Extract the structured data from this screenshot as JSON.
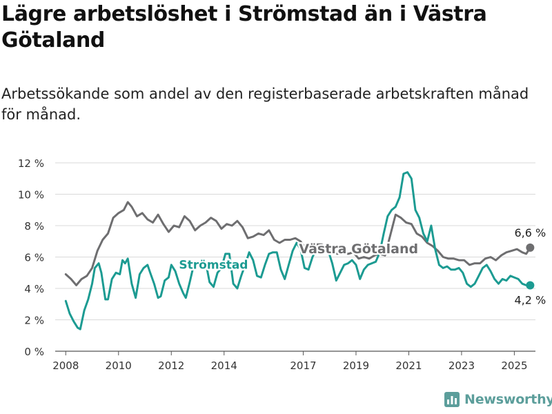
{
  "header": {
    "title": "Lägre arbetslöshet i Strömstad än i Västra Götaland",
    "subtitle": "Arbetssökande som andel av den registerbaserade arbetskraften månad för månad."
  },
  "brand": {
    "name": "Newsworthy",
    "icon": "newsworthy-logo-icon",
    "color": "#5c9e9b"
  },
  "chart_data": {
    "type": "line",
    "title": "Lägre arbetslöshet i Strömstad än i Västra Götaland",
    "subtitle": "Arbetssökande som andel av den registerbaserade arbetskraften månad för månad.",
    "xlabel": "",
    "ylabel": "",
    "x_range": [
      2007.6,
      2025.8
    ],
    "ylim": [
      0,
      12
    ],
    "y_ticks": [
      0,
      2,
      4,
      6,
      8,
      10,
      12
    ],
    "y_tick_labels": [
      "0 %",
      "2 %",
      "4 %",
      "6 %",
      "8 %",
      "10 %",
      "12 %"
    ],
    "x_ticks": [
      2008,
      2010,
      2012,
      2014,
      2017,
      2019,
      2021,
      2023,
      2025
    ],
    "x_tick_labels": [
      "2008",
      "2010",
      "2012",
      "2014",
      "2017",
      "2019",
      "2021",
      "2023",
      "2025"
    ],
    "grid": "horizontal",
    "legend": "inline labels",
    "series": [
      {
        "name": "Västra Götaland",
        "color": "#6e6e70",
        "end_label": "6,6 %",
        "points": [
          [
            2008.0,
            4.9
          ],
          [
            2008.2,
            4.6
          ],
          [
            2008.4,
            4.2
          ],
          [
            2008.6,
            4.6
          ],
          [
            2008.8,
            4.8
          ],
          [
            2009.0,
            5.3
          ],
          [
            2009.2,
            6.4
          ],
          [
            2009.4,
            7.1
          ],
          [
            2009.6,
            7.5
          ],
          [
            2009.8,
            8.5
          ],
          [
            2010.0,
            8.8
          ],
          [
            2010.2,
            9.0
          ],
          [
            2010.35,
            9.5
          ],
          [
            2010.5,
            9.2
          ],
          [
            2010.7,
            8.6
          ],
          [
            2010.9,
            8.8
          ],
          [
            2011.1,
            8.4
          ],
          [
            2011.3,
            8.2
          ],
          [
            2011.5,
            8.7
          ],
          [
            2011.7,
            8.1
          ],
          [
            2011.9,
            7.6
          ],
          [
            2012.1,
            8.0
          ],
          [
            2012.3,
            7.9
          ],
          [
            2012.5,
            8.6
          ],
          [
            2012.7,
            8.3
          ],
          [
            2012.9,
            7.7
          ],
          [
            2013.1,
            8.0
          ],
          [
            2013.3,
            8.2
          ],
          [
            2013.5,
            8.5
          ],
          [
            2013.7,
            8.3
          ],
          [
            2013.9,
            7.8
          ],
          [
            2014.1,
            8.1
          ],
          [
            2014.3,
            8.0
          ],
          [
            2014.5,
            8.3
          ],
          [
            2014.7,
            7.9
          ],
          [
            2014.9,
            7.2
          ],
          [
            2015.1,
            7.3
          ],
          [
            2015.3,
            7.5
          ],
          [
            2015.5,
            7.4
          ],
          [
            2015.7,
            7.7
          ],
          [
            2015.9,
            7.1
          ],
          [
            2016.1,
            6.9
          ],
          [
            2016.3,
            7.1
          ],
          [
            2016.5,
            7.1
          ],
          [
            2016.7,
            7.2
          ],
          [
            2016.9,
            7.0
          ],
          [
            2017.1,
            6.5
          ],
          [
            2017.3,
            6.7
          ],
          [
            2017.5,
            6.8
          ],
          [
            2017.7,
            6.8
          ],
          [
            2017.9,
            6.6
          ],
          [
            2018.1,
            6.3
          ],
          [
            2018.3,
            6.2
          ],
          [
            2018.5,
            6.3
          ],
          [
            2018.7,
            6.2
          ],
          [
            2018.9,
            6.3
          ],
          [
            2019.1,
            5.9
          ],
          [
            2019.3,
            6.0
          ],
          [
            2019.5,
            5.9
          ],
          [
            2019.7,
            6.1
          ],
          [
            2019.9,
            6.2
          ],
          [
            2020.1,
            6.1
          ],
          [
            2020.3,
            7.4
          ],
          [
            2020.5,
            8.7
          ],
          [
            2020.7,
            8.5
          ],
          [
            2020.9,
            8.2
          ],
          [
            2021.1,
            8.1
          ],
          [
            2021.3,
            7.5
          ],
          [
            2021.5,
            7.3
          ],
          [
            2021.7,
            6.9
          ],
          [
            2021.9,
            6.7
          ],
          [
            2022.1,
            6.4
          ],
          [
            2022.3,
            6.0
          ],
          [
            2022.5,
            5.9
          ],
          [
            2022.7,
            5.9
          ],
          [
            2022.9,
            5.8
          ],
          [
            2023.1,
            5.8
          ],
          [
            2023.3,
            5.5
          ],
          [
            2023.5,
            5.6
          ],
          [
            2023.7,
            5.6
          ],
          [
            2023.9,
            5.9
          ],
          [
            2024.1,
            6.0
          ],
          [
            2024.3,
            5.8
          ],
          [
            2024.5,
            6.1
          ],
          [
            2024.7,
            6.3
          ],
          [
            2024.9,
            6.4
          ],
          [
            2025.1,
            6.5
          ],
          [
            2025.3,
            6.3
          ],
          [
            2025.45,
            6.2
          ],
          [
            2025.6,
            6.6
          ]
        ]
      },
      {
        "name": "Strömstad",
        "color": "#1c9b92",
        "end_label": "4,2 %",
        "points": [
          [
            2008.0,
            3.2
          ],
          [
            2008.15,
            2.4
          ],
          [
            2008.3,
            1.9
          ],
          [
            2008.45,
            1.5
          ],
          [
            2008.55,
            1.4
          ],
          [
            2008.7,
            2.6
          ],
          [
            2008.85,
            3.3
          ],
          [
            2009.0,
            4.3
          ],
          [
            2009.1,
            5.3
          ],
          [
            2009.25,
            5.6
          ],
          [
            2009.35,
            5.0
          ],
          [
            2009.5,
            3.3
          ],
          [
            2009.6,
            3.3
          ],
          [
            2009.75,
            4.6
          ],
          [
            2009.9,
            5.0
          ],
          [
            2010.05,
            4.9
          ],
          [
            2010.15,
            5.8
          ],
          [
            2010.25,
            5.6
          ],
          [
            2010.35,
            5.9
          ],
          [
            2010.5,
            4.3
          ],
          [
            2010.65,
            3.4
          ],
          [
            2010.8,
            4.9
          ],
          [
            2010.95,
            5.3
          ],
          [
            2011.1,
            5.5
          ],
          [
            2011.2,
            5.0
          ],
          [
            2011.35,
            4.3
          ],
          [
            2011.5,
            3.4
          ],
          [
            2011.6,
            3.5
          ],
          [
            2011.75,
            4.5
          ],
          [
            2011.9,
            4.7
          ],
          [
            2012.0,
            5.5
          ],
          [
            2012.15,
            5.1
          ],
          [
            2012.3,
            4.3
          ],
          [
            2012.45,
            3.7
          ],
          [
            2012.55,
            3.4
          ],
          [
            2012.7,
            4.4
          ],
          [
            2012.85,
            5.5
          ],
          [
            2013.0,
            5.6
          ],
          [
            2013.15,
            5.5
          ],
          [
            2013.3,
            5.7
          ],
          [
            2013.45,
            4.4
          ],
          [
            2013.6,
            4.1
          ],
          [
            2013.75,
            5.0
          ],
          [
            2013.9,
            5.3
          ],
          [
            2014.05,
            6.2
          ],
          [
            2014.2,
            6.2
          ],
          [
            2014.35,
            4.3
          ],
          [
            2014.5,
            4.0
          ],
          [
            2014.65,
            4.8
          ],
          [
            2014.8,
            5.5
          ],
          [
            2014.95,
            6.3
          ],
          [
            2015.1,
            5.8
          ],
          [
            2015.25,
            4.8
          ],
          [
            2015.4,
            4.7
          ],
          [
            2015.55,
            5.5
          ],
          [
            2015.7,
            6.2
          ],
          [
            2015.85,
            6.3
          ],
          [
            2016.0,
            6.3
          ],
          [
            2016.15,
            5.2
          ],
          [
            2016.3,
            4.6
          ],
          [
            2016.45,
            5.5
          ],
          [
            2016.6,
            6.4
          ],
          [
            2016.75,
            6.9
          ],
          [
            2016.9,
            6.5
          ],
          [
            2017.05,
            5.3
          ],
          [
            2017.2,
            5.2
          ],
          [
            2017.35,
            6.0
          ],
          [
            2017.5,
            6.5
          ],
          [
            2017.65,
            6.6
          ],
          [
            2017.8,
            6.5
          ],
          [
            2017.95,
            6.4
          ],
          [
            2018.1,
            5.6
          ],
          [
            2018.25,
            4.5
          ],
          [
            2018.4,
            5.0
          ],
          [
            2018.55,
            5.5
          ],
          [
            2018.7,
            5.6
          ],
          [
            2018.85,
            5.8
          ],
          [
            2019.0,
            5.5
          ],
          [
            2019.15,
            4.6
          ],
          [
            2019.3,
            5.2
          ],
          [
            2019.45,
            5.5
          ],
          [
            2019.6,
            5.6
          ],
          [
            2019.75,
            5.7
          ],
          [
            2019.9,
            6.3
          ],
          [
            2020.05,
            7.5
          ],
          [
            2020.2,
            8.6
          ],
          [
            2020.35,
            9.0
          ],
          [
            2020.5,
            9.2
          ],
          [
            2020.65,
            9.8
          ],
          [
            2020.8,
            11.3
          ],
          [
            2020.95,
            11.4
          ],
          [
            2021.1,
            11.0
          ],
          [
            2021.25,
            9.0
          ],
          [
            2021.4,
            8.5
          ],
          [
            2021.55,
            7.5
          ],
          [
            2021.7,
            7.0
          ],
          [
            2021.85,
            8.0
          ],
          [
            2022.0,
            6.5
          ],
          [
            2022.15,
            5.5
          ],
          [
            2022.3,
            5.3
          ],
          [
            2022.45,
            5.4
          ],
          [
            2022.6,
            5.2
          ],
          [
            2022.75,
            5.2
          ],
          [
            2022.9,
            5.3
          ],
          [
            2023.05,
            5.0
          ],
          [
            2023.2,
            4.3
          ],
          [
            2023.35,
            4.1
          ],
          [
            2023.5,
            4.3
          ],
          [
            2023.65,
            4.8
          ],
          [
            2023.8,
            5.3
          ],
          [
            2023.95,
            5.5
          ],
          [
            2024.1,
            5.1
          ],
          [
            2024.25,
            4.6
          ],
          [
            2024.4,
            4.3
          ],
          [
            2024.55,
            4.6
          ],
          [
            2024.7,
            4.5
          ],
          [
            2024.85,
            4.8
          ],
          [
            2025.0,
            4.7
          ],
          [
            2025.15,
            4.6
          ],
          [
            2025.3,
            4.3
          ],
          [
            2025.45,
            4.2
          ],
          [
            2025.6,
            4.2
          ]
        ]
      }
    ]
  }
}
